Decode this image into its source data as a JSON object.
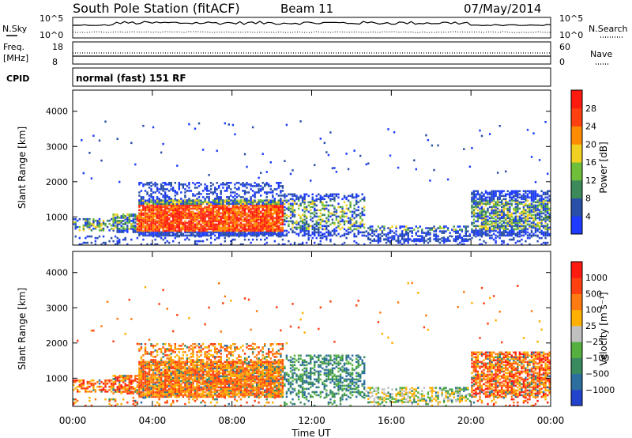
{
  "header": {
    "station": "South Pole Station (fitACF)",
    "beam": "Beam 11",
    "date": "07/May/2014"
  },
  "noise_panel": {
    "left_label": "N.Sky",
    "right_label": "N.Search",
    "left_ticks": [
      "10^5",
      "10^0"
    ],
    "right_ticks": [
      "10^5",
      "10^0"
    ]
  },
  "freq_panel": {
    "left_label_1": "Freq.",
    "left_label_2": "[MHz]",
    "right_label": "Nave",
    "left_ticks": [
      "18",
      "8"
    ],
    "right_ticks": [
      "60",
      "0"
    ]
  },
  "cpid_panel": {
    "label": "CPID",
    "value": "normal (fast) 151 RF"
  },
  "chart_data": [
    {
      "type": "heatmap",
      "name": "power",
      "ylabel": "Slant Range [km]",
      "ylim": [
        200,
        4600
      ],
      "yticks": [
        "1000",
        "2000",
        "3000",
        "4000"
      ],
      "colorbar_label": "Power [dB]",
      "colorbar_ticks": [
        "4",
        "8",
        "12",
        "16",
        "20",
        "24",
        "28"
      ],
      "colors": [
        "#1e3cff",
        "#2a4fa8",
        "#3c8a5a",
        "#6fbf3a",
        "#f0d020",
        "#ff8c00",
        "#ff4010",
        "#ff1a10"
      ]
    },
    {
      "type": "heatmap",
      "name": "velocity",
      "ylabel": "Slant Range [km]",
      "ylim": [
        200,
        4600
      ],
      "yticks": [
        "1000",
        "2000",
        "3000",
        "4000"
      ],
      "colorbar_label": "Velocity [m s⁻¹]",
      "colorbar_ticks": [
        "1000",
        "500",
        "100",
        "25",
        "−25",
        "−100",
        "−500",
        "−1000"
      ],
      "colors": [
        "#2244cc",
        "#2c6e9e",
        "#3a8a60",
        "#55b040",
        "#c0c0c0",
        "#ffb000",
        "#ff7a10",
        "#ff4010",
        "#ff1a10"
      ]
    }
  ],
  "time_axis": {
    "label": "Time UT",
    "ticks": [
      "00:00",
      "04:00",
      "08:00",
      "12:00",
      "16:00",
      "20:00",
      "00:00"
    ]
  }
}
